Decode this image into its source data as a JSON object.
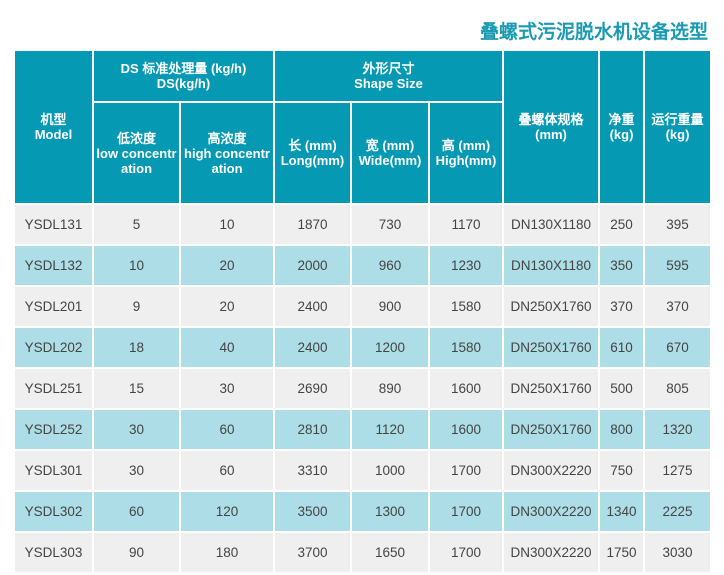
{
  "title": "叠螺式污泥脱水机设备选型",
  "colors": {
    "header": "#0599b3",
    "row_odd": "#efefef",
    "row_even": "#addde6",
    "title": "#1a9bb3"
  },
  "headers": {
    "model": {
      "cn": "机型",
      "en": "Model"
    },
    "ds": {
      "cn": "DS 标准处理量 (kg/h)",
      "en": "DS(kg/h)"
    },
    "low": {
      "cn": "低浓度",
      "en": "low concentration"
    },
    "high": {
      "cn": "高浓度",
      "en": "high concentration"
    },
    "shape": {
      "cn": "外形尺寸",
      "en": "Shape Size"
    },
    "long": {
      "cn": "长 (mm)",
      "en": "Long(mm)"
    },
    "wide": {
      "cn": "宽 (mm)",
      "en": "Wide(mm)"
    },
    "height": {
      "cn": "高 (mm)",
      "en": "High(mm)"
    },
    "spec": {
      "cn": "叠螺体规格",
      "en": "(mm)"
    },
    "net": {
      "cn": "净重",
      "en": "(kg)"
    },
    "run": {
      "cn": "运行重量",
      "en": "(kg)"
    }
  },
  "rows": [
    [
      "YSDL131",
      "5",
      "10",
      "1870",
      "730",
      "1170",
      "DN130X1180",
      "250",
      "395"
    ],
    [
      "YSDL132",
      "10",
      "20",
      "2000",
      "960",
      "1230",
      "DN130X1180",
      "350",
      "595"
    ],
    [
      "YSDL201",
      "9",
      "20",
      "2400",
      "900",
      "1580",
      "DN250X1760",
      "370",
      "370"
    ],
    [
      "YSDL202",
      "18",
      "40",
      "2400",
      "1200",
      "1580",
      "DN250X1760",
      "610",
      "670"
    ],
    [
      "YSDL251",
      "15",
      "30",
      "2690",
      "890",
      "1600",
      "DN250X1760",
      "500",
      "805"
    ],
    [
      "YSDL252",
      "30",
      "60",
      "2810",
      "1120",
      "1600",
      "DN250X1760",
      "800",
      "1320"
    ],
    [
      "YSDL301",
      "30",
      "60",
      "3310",
      "1000",
      "1700",
      "DN300X2220",
      "750",
      "1275"
    ],
    [
      "YSDL302",
      "60",
      "120",
      "3500",
      "1300",
      "1700",
      "DN300X2220",
      "1340",
      "2225"
    ],
    [
      "YSDL303",
      "90",
      "180",
      "3700",
      "1650",
      "1700",
      "DN300X2220",
      "1750",
      "3030"
    ]
  ]
}
